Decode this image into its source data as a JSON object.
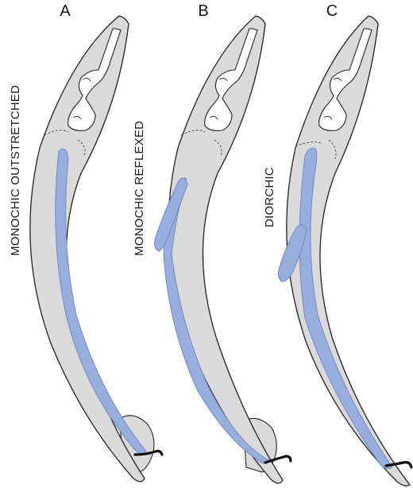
{
  "panels": [
    {
      "letter": "A",
      "label": "MONOCHIC OUTSTRETCHED"
    },
    {
      "letter": "B",
      "label": "MONOCHIC REFLEXED"
    },
    {
      "letter": "C",
      "label": "DIORCHIC"
    }
  ],
  "colors": {
    "body": "#dadada",
    "gonad": "#98aedf",
    "outline": "#222222",
    "spicule": "#111111"
  }
}
